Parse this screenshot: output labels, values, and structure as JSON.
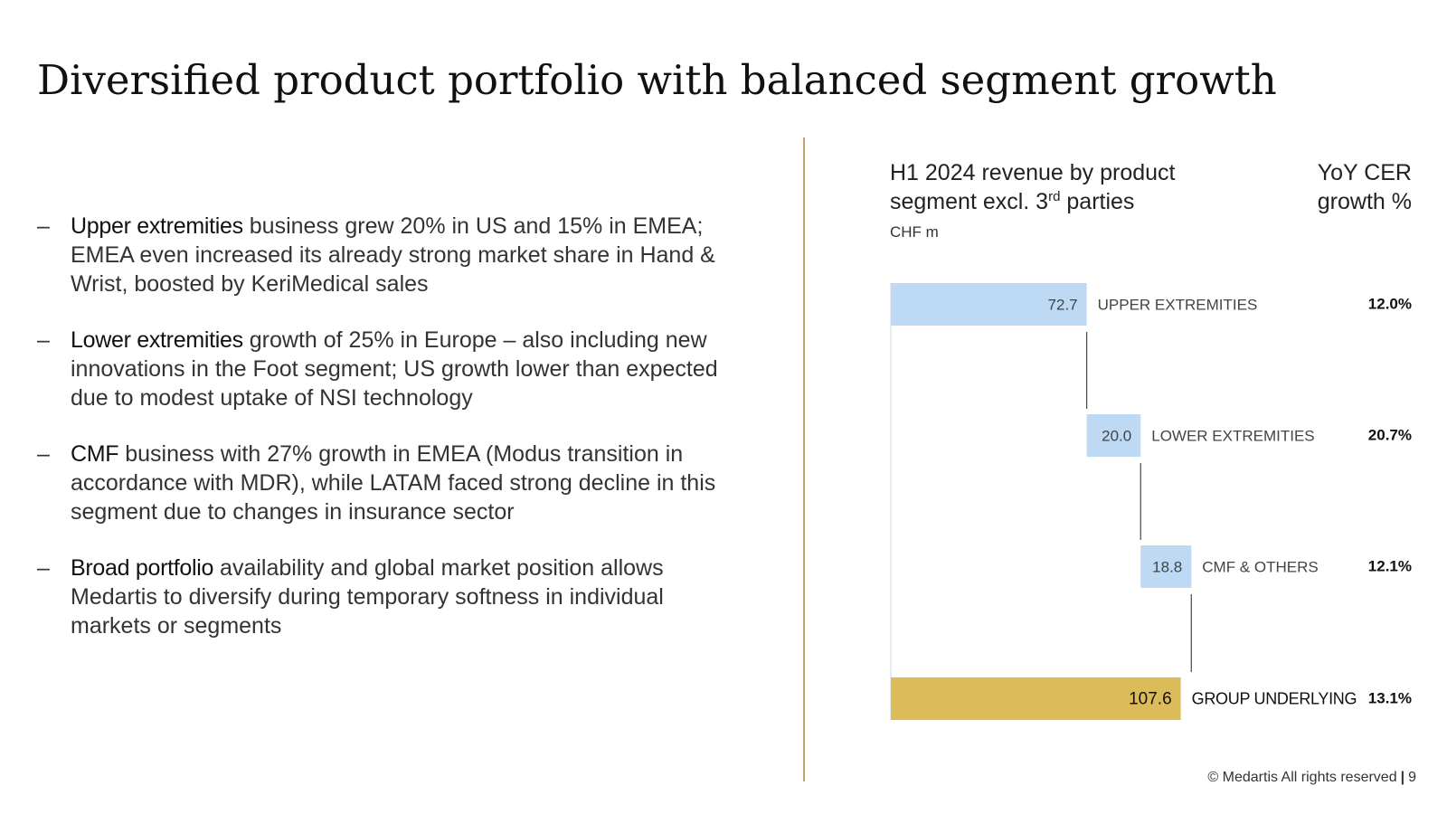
{
  "slide": {
    "title": "Diversified product portfolio with balanced segment growth",
    "page_number": "9",
    "footer": "© Medartis All rights reserved"
  },
  "bullets": [
    {
      "dash": "–",
      "lead": "Upper extremities",
      "text": " business grew 20% in US and 15% in EMEA; EMEA even increased its already strong market share in Hand & Wrist, boosted by KeriMedical sales"
    },
    {
      "dash": "–",
      "lead": "Lower extremities",
      "text": " growth of 25% in Europe – also including new innovations in the Foot segment; US growth lower than expected due to modest uptake of NSI technology"
    },
    {
      "dash": "–",
      "lead": "CMF",
      "text": " business with 27% growth in EMEA (Modus transition in accordance with MDR), while LATAM faced strong decline in this segment due to changes in insurance sector"
    },
    {
      "dash": "–",
      "lead": "Broad portfolio",
      "text": " availability and global market position allows Medartis to diversify during temporary softness in individual markets or segments"
    }
  ],
  "chart_header": {
    "title_line1": "H1 2024 revenue by product",
    "title_line2_pre": "segment excl. 3",
    "title_line2_sup": "rd",
    "title_line2_post": " parties",
    "unit": "CHF m",
    "growth_line1": "YoY CER",
    "growth_line2": "growth %"
  },
  "chart_data": {
    "type": "bar",
    "subtype": "waterfall",
    "title": "H1 2024 revenue by product segment excl. 3rd parties",
    "unit": "CHF m",
    "categories": [
      "UPPER EXTREMITIES",
      "LOWER EXTREMITIES",
      "CMF & OTHERS",
      "GROUP UNDERLYING"
    ],
    "values": [
      72.7,
      20.0,
      18.8,
      107.6
    ],
    "value_labels": [
      "72.7",
      "20.0",
      "18.8",
      "107.6"
    ],
    "is_total": [
      false,
      false,
      false,
      true
    ],
    "growth_labels": [
      "12.0%",
      "20.7%",
      "12.1%",
      "13.1%"
    ],
    "xlim": [
      0,
      111.5
    ],
    "colors": {
      "segment": "#bdd9f3",
      "total": "#dcbc5a",
      "connector": "#444444"
    }
  }
}
